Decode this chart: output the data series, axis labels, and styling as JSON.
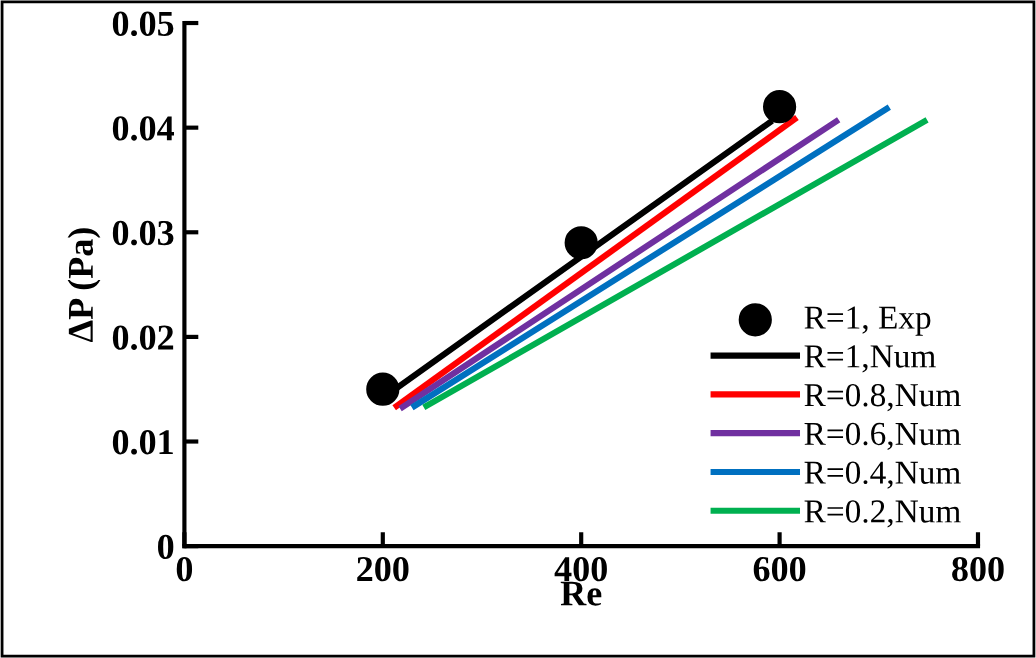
{
  "chart_data": {
    "type": "line",
    "xlabel": "Re",
    "ylabel": "ΔP (Pa)",
    "xlim": [
      0,
      800
    ],
    "ylim": [
      0,
      0.05
    ],
    "xticks": [
      0,
      200,
      400,
      600,
      800
    ],
    "yticks": [
      {
        "value": 0,
        "label": "0"
      },
      0.01,
      0.02,
      0.03,
      0.04,
      0.05
    ],
    "grid": false,
    "legend": "bottom right",
    "line_style": "solid",
    "series": [
      {
        "name": "R=1, Exp",
        "type": "scatter",
        "marker": "circle",
        "color": "#000000",
        "x": [
          200,
          400,
          600
        ],
        "values": [
          0.015,
          0.029,
          0.042
        ]
      },
      {
        "name": "R=1,Num",
        "color": "#000000",
        "x": [
          205,
          590
        ],
        "values": [
          0.0145,
          0.0405
        ]
      },
      {
        "name": "R=0.8,Num",
        "color": "#ff0000",
        "x": [
          214,
          615
        ],
        "values": [
          0.0134,
          0.0408
        ]
      },
      {
        "name": "R=0.6,Num",
        "color": "#7030a0",
        "x": [
          220,
          657
        ],
        "values": [
          0.0133,
          0.0406
        ]
      },
      {
        "name": "R=0.4,Num",
        "color": "#0070c0",
        "x": [
          232,
          708
        ],
        "values": [
          0.0134,
          0.0418
        ]
      },
      {
        "name": "R=0.2,Num",
        "color": "#00b050",
        "x": [
          244,
          746
        ],
        "values": [
          0.0134,
          0.0406
        ]
      }
    ]
  }
}
